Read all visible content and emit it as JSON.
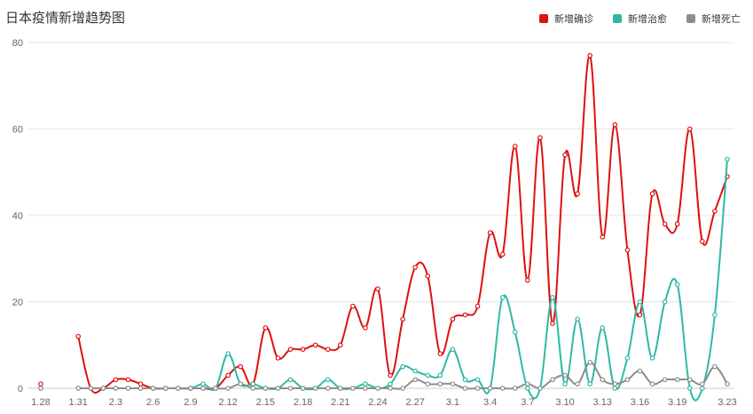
{
  "chart_data": {
    "type": "line",
    "title": "日本疫情新增趋势图",
    "xlabel": "",
    "ylabel": "",
    "ylim": [
      0,
      80
    ],
    "yticks": [
      0,
      20,
      40,
      60,
      80
    ],
    "grid": true,
    "legend_position": "top-right",
    "x": [
      "1.28",
      "1.29",
      "1.30",
      "1.31",
      "2.1",
      "2.2",
      "2.3",
      "2.4",
      "2.5",
      "2.6",
      "2.7",
      "2.8",
      "2.9",
      "2.10",
      "2.11",
      "2.12",
      "2.13",
      "2.14",
      "2.15",
      "2.16",
      "2.17",
      "2.18",
      "2.19",
      "2.20",
      "2.21",
      "2.22",
      "2.23",
      "2.24",
      "2.25",
      "2.26",
      "2.27",
      "2.28",
      "2.29",
      "3.1",
      "3.2",
      "3.3",
      "3.4",
      "3.5",
      "3.6",
      "3.7",
      "3.8",
      "3.9",
      "3.10",
      "3.11",
      "3.12",
      "3.13",
      "3.14",
      "3.15",
      "3.16",
      "3.17",
      "3.18",
      "3.19",
      "3.20",
      "3.21",
      "3.22",
      "3.23"
    ],
    "xtick_labels": [
      "1.28",
      "1.31",
      "2.3",
      "2.6",
      "2.9",
      "2.12",
      "2.15",
      "2.18",
      "2.21",
      "2.24",
      "2.27",
      "3.1",
      "3.4",
      "3.7",
      "3.10",
      "3.13",
      "3.16",
      "3.19",
      "3.23"
    ],
    "series": [
      {
        "name": "新增确诊",
        "color": "#dd1111",
        "values": [
          1,
          null,
          null,
          12,
          0,
          0,
          2,
          2,
          1,
          0,
          0,
          0,
          0,
          0,
          0,
          3,
          5,
          1,
          14,
          7,
          9,
          9,
          10,
          9,
          10,
          19,
          14,
          23,
          3,
          16,
          28,
          26,
          8,
          16,
          17,
          19,
          36,
          31,
          56,
          25,
          58,
          15,
          54,
          45,
          77,
          35,
          61,
          32,
          17,
          45,
          38,
          38,
          60,
          34,
          41,
          49
        ]
      },
      {
        "name": "新增治愈",
        "color": "#2fb9a5",
        "values": [
          0,
          null,
          null,
          0,
          0,
          0,
          0,
          0,
          0,
          0,
          0,
          0,
          0,
          1,
          0,
          8,
          1,
          1,
          0,
          0,
          2,
          0,
          0,
          2,
          0,
          0,
          1,
          0,
          1,
          5,
          4,
          3,
          3,
          9,
          2,
          2,
          0,
          21,
          13,
          0,
          0,
          21,
          1,
          16,
          1,
          14,
          0,
          7,
          20,
          7,
          20,
          24,
          0,
          0,
          17,
          53
        ]
      },
      {
        "name": "新增死亡",
        "color": "#8c8c8c",
        "values": [
          0,
          null,
          null,
          0,
          0,
          0,
          0,
          0,
          0,
          0,
          0,
          0,
          0,
          0,
          0,
          0,
          1,
          0,
          0,
          0,
          0,
          0,
          0,
          0,
          0,
          0,
          0,
          0,
          0,
          0,
          2,
          1,
          1,
          1,
          0,
          0,
          0,
          0,
          0,
          1,
          0,
          2,
          3,
          1,
          6,
          2,
          1,
          2,
          4,
          1,
          2,
          2,
          2,
          1,
          5,
          1
        ]
      }
    ]
  }
}
